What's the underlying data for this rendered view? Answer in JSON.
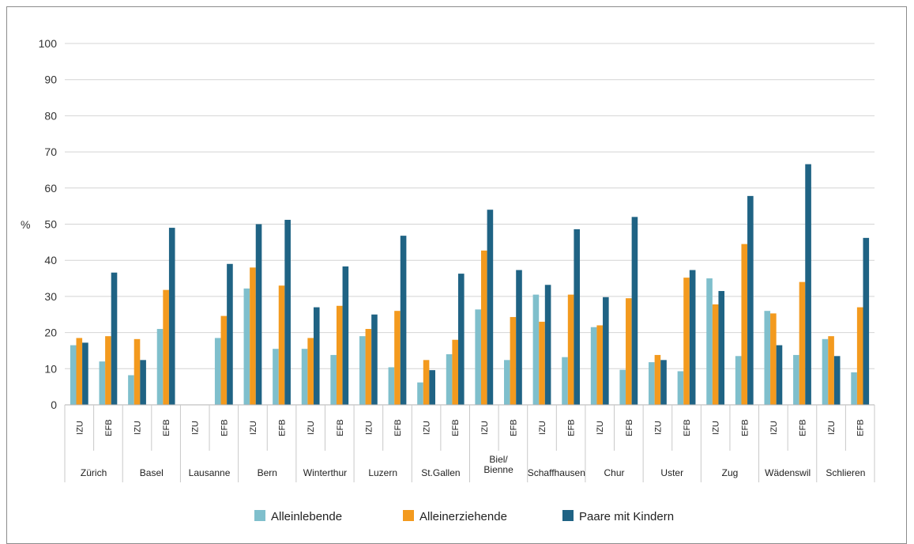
{
  "chart_data": {
    "type": "bar",
    "ylabel": "%",
    "ylim": [
      0,
      100
    ],
    "yticks": [
      0,
      10,
      20,
      30,
      40,
      50,
      60,
      70,
      80,
      90,
      100
    ],
    "grid": true,
    "legend_position": "bottom",
    "groups": [
      {
        "city": "Zürich",
        "subs": [
          "IZU",
          "EFB"
        ]
      },
      {
        "city": "Basel",
        "subs": [
          "IZU",
          "EFB"
        ]
      },
      {
        "city": "Lausanne",
        "subs": [
          "IZU",
          "EFB"
        ]
      },
      {
        "city": "Bern",
        "subs": [
          "IZU",
          "EFB"
        ]
      },
      {
        "city": "Winterthur",
        "subs": [
          "IZU",
          "EFB"
        ]
      },
      {
        "city": "Luzern",
        "subs": [
          "IZU",
          "EFB"
        ]
      },
      {
        "city": "St.Gallen",
        "subs": [
          "IZU",
          "EFB"
        ]
      },
      {
        "city": "Biel/\nBienne",
        "subs": [
          "IZU",
          "EFB"
        ]
      },
      {
        "city": "Schaffhausen",
        "subs": [
          "IZU",
          "EFB"
        ]
      },
      {
        "city": "Chur",
        "subs": [
          "IZU",
          "EFB"
        ]
      },
      {
        "city": "Uster",
        "subs": [
          "IZU",
          "EFB"
        ]
      },
      {
        "city": "Zug",
        "subs": [
          "IZU",
          "EFB"
        ]
      },
      {
        "city": "Wädenswil",
        "subs": [
          "IZU",
          "EFB"
        ]
      },
      {
        "city": "Schlieren",
        "subs": [
          "IZU",
          "EFB"
        ]
      }
    ],
    "series": [
      {
        "name": "Alleinlebende",
        "color": "#7fbfcc",
        "values": [
          16.5,
          12,
          8.2,
          21,
          null,
          18.5,
          32.2,
          15.5,
          15.5,
          13.8,
          19,
          10.4,
          6.2,
          14,
          26.4,
          12.4,
          30.5,
          13.2,
          21.5,
          9.7,
          11.8,
          9.3,
          35,
          13.5,
          26,
          13.8,
          18.2,
          9
        ]
      },
      {
        "name": "Alleinerziehende",
        "color": "#f39a1e",
        "values": [
          18.5,
          19,
          18.2,
          31.8,
          null,
          24.6,
          38,
          33,
          18.5,
          27.4,
          21,
          26,
          12.4,
          18,
          42.7,
          24.3,
          23,
          30.5,
          22,
          29.5,
          13.8,
          35.2,
          27.8,
          44.5,
          25.3,
          34,
          19,
          27
        ]
      },
      {
        "name": "Paare mit Kindern",
        "color": "#1f6384",
        "values": [
          17.2,
          36.6,
          12.4,
          49,
          null,
          39,
          50,
          51.2,
          27,
          38.3,
          25,
          46.8,
          9.6,
          36.3,
          54,
          37.3,
          33.2,
          48.6,
          29.8,
          52,
          12.4,
          37.3,
          31.5,
          57.8,
          16.5,
          66.6,
          13.5,
          46.2
        ]
      }
    ]
  }
}
